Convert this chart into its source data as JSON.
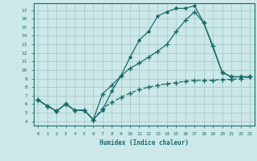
{
  "xlabel": "Humidex (Indice chaleur)",
  "bg_color": "#cce8e8",
  "grid_color": "#aacccc",
  "line_color": "#1a6b6b",
  "xlim": [
    -0.5,
    23.5
  ],
  "ylim": [
    3.5,
    17.8
  ],
  "xticks": [
    0,
    1,
    2,
    3,
    4,
    5,
    6,
    7,
    8,
    9,
    10,
    11,
    12,
    13,
    14,
    15,
    16,
    17,
    18,
    19,
    20,
    21,
    22,
    23
  ],
  "yticks": [
    4,
    5,
    6,
    7,
    8,
    9,
    10,
    11,
    12,
    13,
    14,
    15,
    16,
    17
  ],
  "curve1_x": [
    0,
    1,
    2,
    3,
    4,
    5,
    6,
    7,
    8,
    9,
    10,
    11,
    12,
    13,
    14,
    15,
    16,
    17,
    18,
    20,
    21,
    22,
    23
  ],
  "curve1_y": [
    6.5,
    5.8,
    5.2,
    6.0,
    5.3,
    5.3,
    4.2,
    5.3,
    7.5,
    9.3,
    11.5,
    13.5,
    14.5,
    16.3,
    16.8,
    17.2,
    17.2,
    17.5,
    15.5,
    9.7,
    9.2,
    9.2,
    9.2
  ],
  "curve2_x": [
    0,
    1,
    2,
    3,
    4,
    5,
    6,
    7,
    8,
    9,
    10,
    11,
    12,
    13,
    14,
    15,
    16,
    17,
    18,
    19,
    20,
    21,
    22,
    23
  ],
  "curve2_y": [
    6.5,
    5.8,
    5.2,
    6.0,
    5.3,
    5.3,
    4.2,
    7.2,
    8.2,
    9.3,
    10.2,
    10.8,
    11.5,
    12.2,
    13.0,
    14.5,
    15.8,
    16.8,
    15.5,
    12.8,
    9.7,
    9.2,
    9.2,
    9.2
  ],
  "curve3_x": [
    0,
    1,
    2,
    3,
    4,
    5,
    6,
    7,
    8,
    9,
    10,
    11,
    12,
    13,
    14,
    15,
    16,
    17,
    18,
    19,
    20,
    21,
    22,
    23
  ],
  "curve3_y": [
    6.5,
    5.8,
    5.2,
    6.0,
    5.3,
    5.3,
    4.2,
    5.5,
    6.2,
    6.8,
    7.3,
    7.7,
    8.0,
    8.2,
    8.4,
    8.5,
    8.7,
    8.8,
    8.8,
    8.8,
    8.9,
    8.9,
    9.0,
    9.2
  ]
}
